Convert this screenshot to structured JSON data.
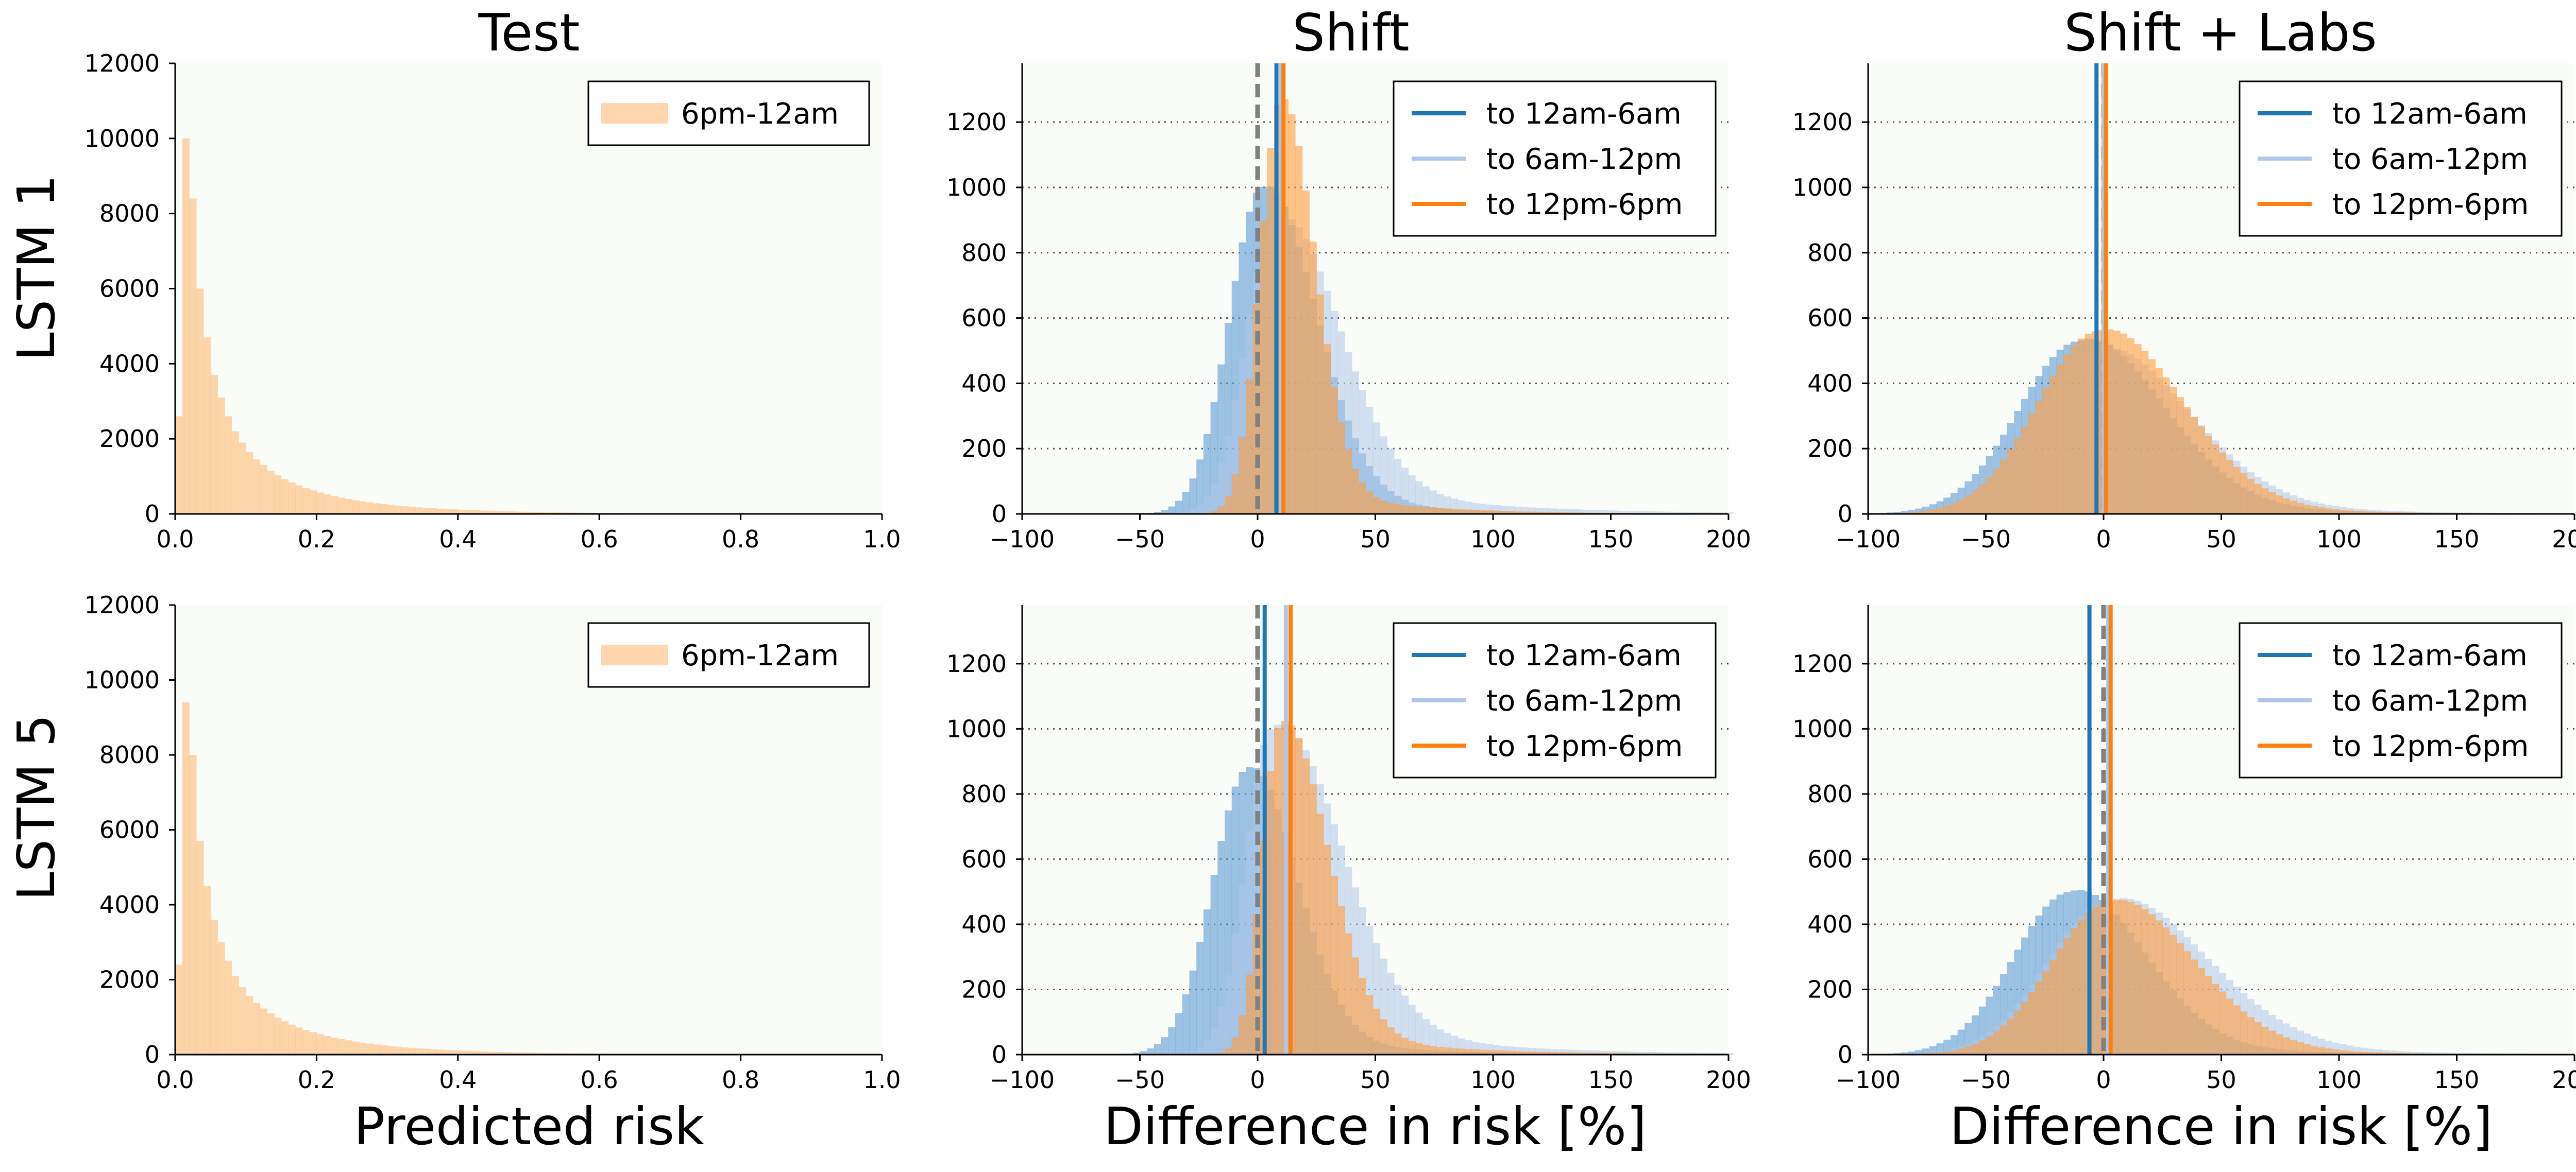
{
  "column_titles": [
    "Test",
    "Shift",
    "Shift + Labs"
  ],
  "row_labels": [
    "LSTM 1",
    "LSTM 5"
  ],
  "x_labels": [
    "Predicted risk",
    "Difference in risk [%]",
    "Difference in risk [%]"
  ],
  "colors": {
    "blue": "#1f77b4",
    "light_blue": "#aec7e8",
    "orange": "#ff7f0e",
    "peach": "#ffbb78",
    "hist_blue": "#5b9bd5",
    "hist_light_blue": "#aec7e8",
    "hist_orange": "#ff9f40",
    "dashed": "#808080",
    "grid": "#555555",
    "panel_bg": "#fafcf8"
  },
  "chart_data": [
    {
      "type": "bar",
      "panel": "LSTM 1 / Test",
      "title": "Test",
      "ylabel": "LSTM 1",
      "xlabel": "",
      "xlim": [
        0.0,
        1.0
      ],
      "ylim": [
        0,
        12000
      ],
      "xticks": [
        "0.0",
        "0.2",
        "0.4",
        "0.6",
        "0.8",
        "1.0"
      ],
      "yticks": [
        "0",
        "2000",
        "4000",
        "6000",
        "8000",
        "10000",
        "12000"
      ],
      "legend": {
        "position": "top-right",
        "entries": [
          {
            "label": "6pm-12am",
            "kind": "patch",
            "color": "#ffbb78"
          }
        ]
      },
      "grid": false,
      "series": [
        {
          "name": "6pm-12am",
          "color": "#ffbb78",
          "opacity": 0.6,
          "bin_start": 0.0,
          "bin_width": 0.01,
          "values": [
            2600,
            10000,
            8400,
            6000,
            4700,
            3700,
            3100,
            2600,
            2200,
            1900,
            1650,
            1450,
            1300,
            1150,
            1030,
            930,
            840,
            760,
            690,
            630,
            570,
            520,
            475,
            435,
            400,
            365,
            335,
            308,
            283,
            260,
            240,
            222,
            205,
            190,
            176,
            163,
            151,
            140,
            130,
            121,
            112,
            104,
            97,
            90,
            84,
            78,
            72,
            67,
            62,
            58,
            54,
            50,
            46,
            43,
            40,
            37,
            34,
            31,
            29,
            27,
            25,
            23,
            21,
            19,
            17,
            15,
            13,
            11,
            9,
            7
          ]
        }
      ]
    },
    {
      "type": "bar",
      "panel": "LSTM 1 / Shift",
      "title": "Shift",
      "xlabel": "",
      "xlim": [
        -100,
        200
      ],
      "ylim": [
        0,
        1380
      ],
      "xticks": [
        "−100",
        "−50",
        "0",
        "50",
        "100",
        "150",
        "200"
      ],
      "yticks": [
        "0",
        "200",
        "400",
        "600",
        "800",
        "1000",
        "1200"
      ],
      "grid": "y-dotted",
      "legend": {
        "position": "top-right",
        "entries": [
          {
            "label": "to 12am-6am",
            "kind": "line",
            "color": "#1f77b4"
          },
          {
            "label": "to 6am-12pm",
            "kind": "line",
            "color": "#aec7e8"
          },
          {
            "label": "to 12pm-6pm",
            "kind": "line",
            "color": "#ff7f0e"
          }
        ]
      },
      "vlines": [
        {
          "x": 0,
          "color": "#808080",
          "dashed": true
        },
        {
          "x": 8,
          "color": "#1f77b4"
        },
        {
          "x": 10,
          "color": "#aec7e8"
        },
        {
          "x": 11,
          "color": "#ff7f0e"
        }
      ],
      "series": [
        {
          "name": "to 12am-6am",
          "color": "#5b9bd5",
          "center": 2,
          "sigma_left": 14,
          "sigma_right": 22,
          "peak": 1000,
          "tail": 0.1,
          "tail_scale": 40
        },
        {
          "name": "to 6am-12pm",
          "color": "#aec7e8",
          "center": 7,
          "sigma_left": 12,
          "sigma_right": 26,
          "peak": 900,
          "tail": 0.16,
          "tail_scale": 55
        },
        {
          "name": "to 12pm-6pm",
          "color": "#ff9f40",
          "center": 10,
          "sigma_left": 9,
          "sigma_right": 14,
          "peak": 1270,
          "tail": 0.08,
          "tail_scale": 40
        }
      ]
    },
    {
      "type": "bar",
      "panel": "LSTM 1 / Shift + Labs",
      "title": "Shift + Labs",
      "xlabel": "",
      "xlim": [
        -100,
        200
      ],
      "ylim": [
        0,
        1380
      ],
      "xticks": [
        "−100",
        "−50",
        "0",
        "50",
        "100",
        "150",
        "200"
      ],
      "yticks": [
        "0",
        "200",
        "400",
        "600",
        "800",
        "1000",
        "1200"
      ],
      "grid": "y-dotted",
      "legend": {
        "position": "top-right",
        "entries": [
          {
            "label": "to 12am-6am",
            "kind": "line",
            "color": "#1f77b4"
          },
          {
            "label": "to 6am-12pm",
            "kind": "line",
            "color": "#aec7e8"
          },
          {
            "label": "to 12pm-6pm",
            "kind": "line",
            "color": "#ff7f0e"
          }
        ]
      },
      "vlines": [
        {
          "x": 0,
          "color": "#808080",
          "dashed": true
        },
        {
          "x": -3,
          "color": "#1f77b4"
        },
        {
          "x": 0,
          "color": "#aec7e8"
        },
        {
          "x": 1,
          "color": "#ff7f0e"
        }
      ],
      "series": [
        {
          "name": "to 12am-6am",
          "color": "#5b9bd5",
          "center": -10,
          "sigma_left": 26,
          "sigma_right": 34,
          "peak": 530,
          "tail": 0.12,
          "tail_scale": 50
        },
        {
          "name": "to 6am-12pm",
          "color": "#aec7e8",
          "center": -4,
          "sigma_left": 25,
          "sigma_right": 38,
          "peak": 500,
          "tail": 0.14,
          "tail_scale": 55
        },
        {
          "name": "to 12pm-6pm",
          "color": "#ff9f40",
          "center": -2,
          "sigma_left": 26,
          "sigma_right": 34,
          "peak": 560,
          "tail": 0.1,
          "tail_scale": 50
        }
      ]
    },
    {
      "type": "bar",
      "panel": "LSTM 5 / Test",
      "ylabel": "LSTM 5",
      "xlabel": "Predicted risk",
      "xlim": [
        0.0,
        1.0
      ],
      "ylim": [
        0,
        12000
      ],
      "xticks": [
        "0.0",
        "0.2",
        "0.4",
        "0.6",
        "0.8",
        "1.0"
      ],
      "yticks": [
        "0",
        "2000",
        "4000",
        "6000",
        "8000",
        "10000",
        "12000"
      ],
      "legend": {
        "position": "top-right",
        "entries": [
          {
            "label": "6pm-12am",
            "kind": "patch",
            "color": "#ffbb78"
          }
        ]
      },
      "grid": false,
      "series": [
        {
          "name": "6pm-12am",
          "color": "#ffbb78",
          "opacity": 0.6,
          "bin_start": 0.0,
          "bin_width": 0.01,
          "values": [
            2400,
            9400,
            8000,
            5700,
            4500,
            3600,
            3000,
            2500,
            2100,
            1800,
            1570,
            1380,
            1230,
            1100,
            990,
            890,
            800,
            725,
            660,
            600,
            545,
            497,
            454,
            415,
            380,
            348,
            320,
            294,
            270,
            248,
            229,
            211,
            195,
            180,
            167,
            155,
            144,
            134,
            124,
            115,
            107,
            99,
            92,
            86,
            80,
            74,
            69,
            64,
            59,
            55,
            51,
            47,
            44,
            41,
            38,
            35,
            32,
            30,
            28,
            26,
            24,
            22,
            20,
            18,
            16,
            14,
            12,
            10,
            8,
            6
          ]
        }
      ]
    },
    {
      "type": "bar",
      "panel": "LSTM 5 / Shift",
      "xlabel": "Difference in risk [%]",
      "xlim": [
        -100,
        200
      ],
      "ylim": [
        0,
        1380
      ],
      "xticks": [
        "−100",
        "−50",
        "0",
        "50",
        "100",
        "150",
        "200"
      ],
      "yticks": [
        "0",
        "200",
        "400",
        "600",
        "800",
        "1000",
        "1200"
      ],
      "grid": "y-dotted",
      "legend": {
        "position": "top-right",
        "entries": [
          {
            "label": "to 12am-6am",
            "kind": "line",
            "color": "#1f77b4"
          },
          {
            "label": "to 6am-12pm",
            "kind": "line",
            "color": "#aec7e8"
          },
          {
            "label": "to 12pm-6pm",
            "kind": "line",
            "color": "#ff7f0e"
          }
        ]
      },
      "vlines": [
        {
          "x": 0,
          "color": "#808080",
          "dashed": true
        },
        {
          "x": 3,
          "color": "#1f77b4"
        },
        {
          "x": 12,
          "color": "#aec7e8"
        },
        {
          "x": 14,
          "color": "#ff7f0e"
        }
      ],
      "series": [
        {
          "name": "to 12am-6am",
          "color": "#5b9bd5",
          "center": -4,
          "sigma_left": 15,
          "sigma_right": 20,
          "peak": 880,
          "tail": 0.1,
          "tail_scale": 40
        },
        {
          "name": "to 6am-12pm",
          "color": "#aec7e8",
          "center": 6,
          "sigma_left": 11,
          "sigma_right": 28,
          "peak": 1000,
          "tail": 0.15,
          "tail_scale": 55
        },
        {
          "name": "to 12pm-6pm",
          "color": "#ff9f40",
          "center": 10,
          "sigma_left": 8,
          "sigma_right": 19,
          "peak": 1020,
          "tail": 0.1,
          "tail_scale": 45
        }
      ]
    },
    {
      "type": "bar",
      "panel": "LSTM 5 / Shift + Labs",
      "xlabel": "Difference in risk [%]",
      "xlim": [
        -100,
        200
      ],
      "ylim": [
        0,
        1380
      ],
      "xticks": [
        "−100",
        "−50",
        "0",
        "50",
        "100",
        "150",
        "200"
      ],
      "yticks": [
        "0",
        "200",
        "400",
        "600",
        "800",
        "1000",
        "1200"
      ],
      "grid": "y-dotted",
      "legend": {
        "position": "top-right",
        "entries": [
          {
            "label": "to 12am-6am",
            "kind": "line",
            "color": "#1f77b4"
          },
          {
            "label": "to 6am-12pm",
            "kind": "line",
            "color": "#aec7e8"
          },
          {
            "label": "to 12pm-6pm",
            "kind": "line",
            "color": "#ff7f0e"
          }
        ]
      },
      "vlines": [
        {
          "x": 0,
          "color": "#808080",
          "dashed": true
        },
        {
          "x": -6,
          "color": "#1f77b4"
        },
        {
          "x": 2,
          "color": "#aec7e8"
        },
        {
          "x": 3,
          "color": "#ff7f0e"
        }
      ],
      "series": [
        {
          "name": "to 12am-6am",
          "color": "#5b9bd5",
          "center": -14,
          "sigma_left": 24,
          "sigma_right": 30,
          "peak": 500,
          "tail": 0.12,
          "tail_scale": 50
        },
        {
          "name": "to 6am-12pm",
          "color": "#aec7e8",
          "center": 2,
          "sigma_left": 26,
          "sigma_right": 40,
          "peak": 470,
          "tail": 0.14,
          "tail_scale": 55
        },
        {
          "name": "to 12pm-6pm",
          "color": "#ff9f40",
          "center": 3,
          "sigma_left": 25,
          "sigma_right": 34,
          "peak": 470,
          "tail": 0.1,
          "tail_scale": 50
        }
      ]
    }
  ]
}
